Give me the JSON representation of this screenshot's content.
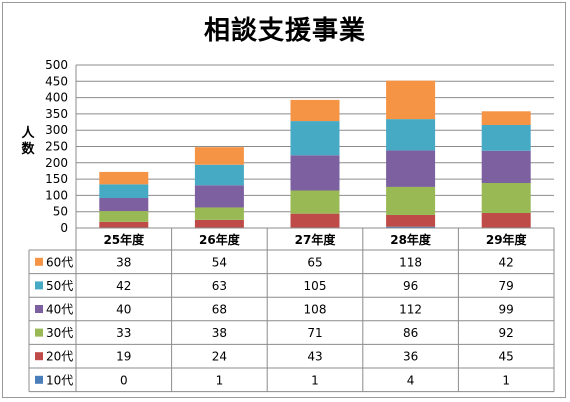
{
  "chart_data": {
    "type": "bar",
    "stacked": true,
    "title": "相談支援事業",
    "ylabel": "人数",
    "ylim": [
      0,
      500
    ],
    "yticks": [
      0,
      50,
      100,
      150,
      200,
      250,
      300,
      350,
      400,
      450,
      500
    ],
    "grid": true,
    "legend": "data-table-left",
    "categories": [
      "25年度",
      "26年度",
      "27年度",
      "28年度",
      "29年度"
    ],
    "series": [
      {
        "name": "10代",
        "color": "#4a7ebb",
        "values": [
          0,
          1,
          1,
          4,
          1
        ]
      },
      {
        "name": "20代",
        "color": "#be4b48",
        "values": [
          19,
          24,
          43,
          36,
          45
        ]
      },
      {
        "name": "30代",
        "color": "#98b954",
        "values": [
          33,
          38,
          71,
          86,
          92
        ]
      },
      {
        "name": "40代",
        "color": "#7d60a0",
        "values": [
          40,
          68,
          108,
          112,
          99
        ]
      },
      {
        "name": "50代",
        "color": "#46aac4",
        "values": [
          42,
          63,
          105,
          96,
          79
        ]
      },
      {
        "name": "60代",
        "color": "#f69446",
        "values": [
          38,
          54,
          65,
          118,
          42
        ]
      }
    ]
  }
}
